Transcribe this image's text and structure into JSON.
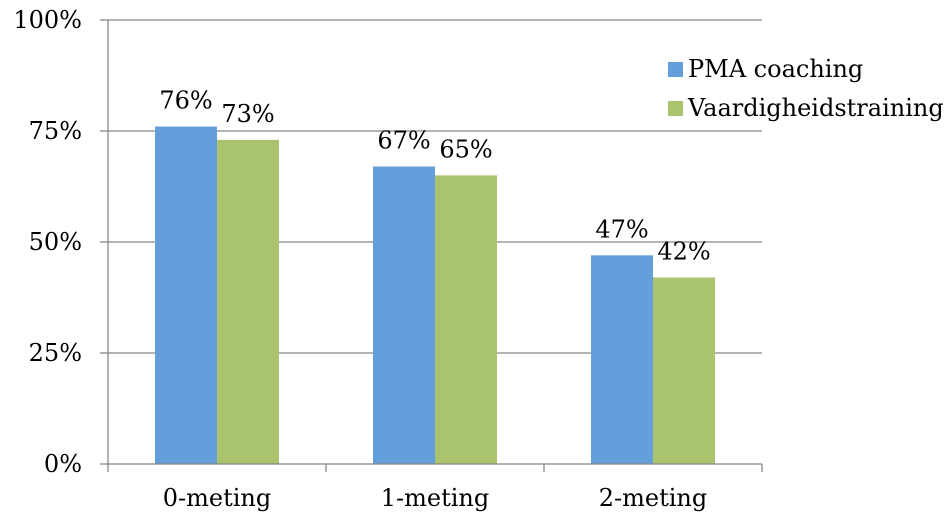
{
  "chart_data": {
    "type": "bar",
    "categories": [
      "0-meting",
      "1-meting",
      "2-meting"
    ],
    "series": [
      {
        "name": "PMA coaching",
        "values": [
          76,
          67,
          47
        ],
        "labels": [
          "76%",
          "67%",
          "47%"
        ],
        "color": "#659fdb"
      },
      {
        "name": "Vaardigheidstraining",
        "values": [
          73,
          65,
          42
        ],
        "labels": [
          "73%",
          "65%",
          "42%"
        ],
        "color": "#a9c46d"
      }
    ],
    "ylim": [
      0,
      100
    ],
    "yticks": [
      0,
      25,
      50,
      75,
      100
    ],
    "ytick_labels": [
      "0%",
      "25%",
      "50%",
      "75%",
      "100%"
    ],
    "grid": true,
    "legend_position": "top-right",
    "title": "",
    "xlabel": "",
    "ylabel": ""
  }
}
